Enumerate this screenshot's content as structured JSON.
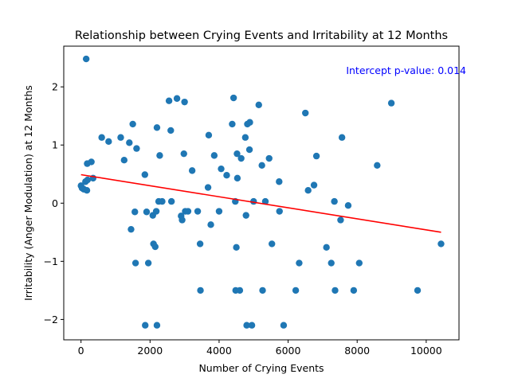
{
  "chart_data": {
    "type": "scatter",
    "title": "Relationship between Crying Events and Irritability at 12 Months",
    "xlabel": "Number of Crying Events",
    "ylabel": "Irritability (Anger Modulation) at 12 Months",
    "xlim": [
      -500,
      10950
    ],
    "ylim": [
      -2.35,
      2.7
    ],
    "xticks": [
      0,
      2000,
      4000,
      6000,
      8000,
      10000
    ],
    "yticks": [
      -2,
      -1,
      0,
      1,
      2
    ],
    "grid": false,
    "point_color": "#1f77b4",
    "line_color": "#ff0000",
    "annotation": {
      "text": "Intercept p-value: 0.014",
      "color": "#0000ff",
      "position": "top-right"
    },
    "regression_line": {
      "x": [
        0,
        10430
      ],
      "y": [
        0.49,
        -0.5
      ]
    },
    "points": [
      [
        150,
        2.48
      ],
      [
        0,
        0.3
      ],
      [
        30,
        0.26
      ],
      [
        80,
        0.24
      ],
      [
        130,
        0.37
      ],
      [
        170,
        0.22
      ],
      [
        190,
        0.4
      ],
      [
        180,
        0.68
      ],
      [
        300,
        0.71
      ],
      [
        350,
        0.43
      ],
      [
        600,
        1.13
      ],
      [
        800,
        1.06
      ],
      [
        1150,
        1.13
      ],
      [
        1250,
        0.74
      ],
      [
        1400,
        1.04
      ],
      [
        1450,
        -0.45
      ],
      [
        1500,
        1.36
      ],
      [
        1560,
        -0.15
      ],
      [
        1580,
        -1.03
      ],
      [
        1610,
        0.94
      ],
      [
        1850,
        0.49
      ],
      [
        1860,
        -2.1
      ],
      [
        1900,
        -0.15
      ],
      [
        1950,
        -1.03
      ],
      [
        2080,
        -0.21
      ],
      [
        2100,
        -0.7
      ],
      [
        2150,
        -0.75
      ],
      [
        2180,
        -0.14
      ],
      [
        2200,
        1.3
      ],
      [
        2200,
        -2.1
      ],
      [
        2250,
        0.03
      ],
      [
        2280,
        0.82
      ],
      [
        2350,
        0.03
      ],
      [
        2550,
        1.76
      ],
      [
        2600,
        1.25
      ],
      [
        2620,
        0.03
      ],
      [
        2780,
        1.8
      ],
      [
        2900,
        -0.22
      ],
      [
        2930,
        -0.29
      ],
      [
        2980,
        0.85
      ],
      [
        3000,
        1.74
      ],
      [
        3020,
        -0.14
      ],
      [
        3100,
        -0.14
      ],
      [
        3220,
        0.56
      ],
      [
        3380,
        -0.14
      ],
      [
        3450,
        -0.7
      ],
      [
        3460,
        -1.5
      ],
      [
        3680,
        0.27
      ],
      [
        3700,
        1.17
      ],
      [
        3760,
        -0.37
      ],
      [
        3860,
        0.82
      ],
      [
        4000,
        -0.14
      ],
      [
        4060,
        0.59
      ],
      [
        4220,
        0.48
      ],
      [
        4380,
        1.36
      ],
      [
        4420,
        1.81
      ],
      [
        4470,
        0.03
      ],
      [
        4480,
        -1.5
      ],
      [
        4500,
        -0.76
      ],
      [
        4520,
        0.85
      ],
      [
        4530,
        0.43
      ],
      [
        4600,
        -1.5
      ],
      [
        4640,
        0.77
      ],
      [
        4760,
        1.13
      ],
      [
        4780,
        -0.21
      ],
      [
        4800,
        -2.1
      ],
      [
        4820,
        1.36
      ],
      [
        4880,
        0.92
      ],
      [
        4890,
        1.39
      ],
      [
        4950,
        -2.1
      ],
      [
        5000,
        0.03
      ],
      [
        5150,
        1.69
      ],
      [
        5240,
        0.65
      ],
      [
        5260,
        -1.5
      ],
      [
        5340,
        0.03
      ],
      [
        5450,
        0.77
      ],
      [
        5530,
        -0.7
      ],
      [
        5740,
        0.37
      ],
      [
        5750,
        -0.14
      ],
      [
        5870,
        -2.1
      ],
      [
        6220,
        -1.5
      ],
      [
        6320,
        -1.03
      ],
      [
        6500,
        1.55
      ],
      [
        6580,
        0.22
      ],
      [
        6750,
        0.31
      ],
      [
        6820,
        0.81
      ],
      [
        7110,
        -0.76
      ],
      [
        7250,
        -1.03
      ],
      [
        7340,
        0.03
      ],
      [
        7360,
        -1.5
      ],
      [
        7520,
        -0.29
      ],
      [
        7560,
        1.13
      ],
      [
        7740,
        -0.04
      ],
      [
        7900,
        -1.5
      ],
      [
        8060,
        -1.03
      ],
      [
        8580,
        0.65
      ],
      [
        8990,
        1.72
      ],
      [
        9750,
        -1.5
      ],
      [
        10430,
        -0.7
      ]
    ]
  }
}
